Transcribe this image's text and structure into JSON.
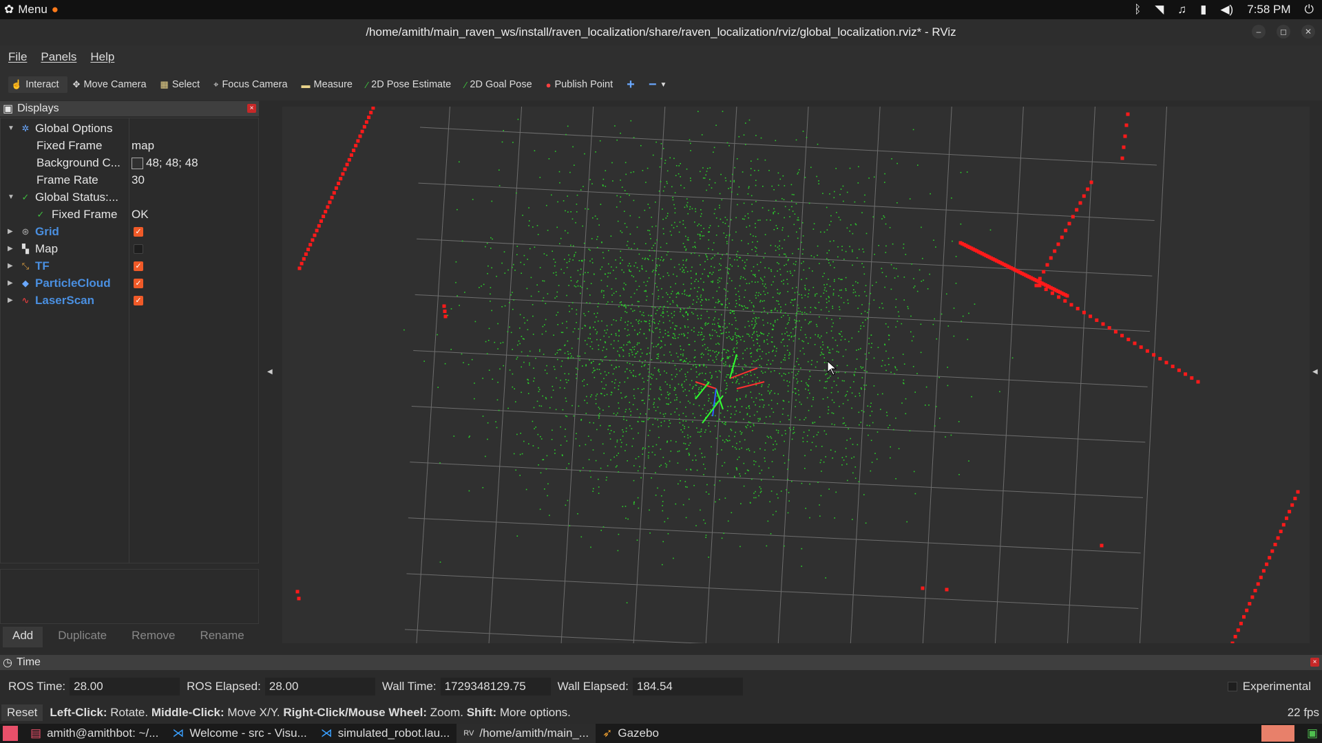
{
  "topbar": {
    "menu_label": "Menu",
    "time": "7:58 PM"
  },
  "window": {
    "title": "/home/amith/main_raven_ws/install/raven_localization/share/raven_localization/rviz/global_localization.rviz* - RViz"
  },
  "menubar": {
    "file": "File",
    "panels": "Panels",
    "help": "Help"
  },
  "toolbar": {
    "interact": "Interact",
    "move_camera": "Move Camera",
    "select": "Select",
    "focus_camera": "Focus Camera",
    "measure": "Measure",
    "pose_estimate": "2D Pose Estimate",
    "goal_pose": "2D Goal Pose",
    "publish_point": "Publish Point",
    "add": "+",
    "remove": "−"
  },
  "displays": {
    "title": "Displays",
    "global_options": "Global Options",
    "fixed_frame_label": "Fixed Frame",
    "fixed_frame_value": "map",
    "background_label": "Background C...",
    "background_value": "48; 48; 48",
    "frame_rate_label": "Frame Rate",
    "frame_rate_value": "30",
    "global_status": "Global Status:...",
    "status_fixed_frame_label": "Fixed Frame",
    "status_fixed_frame_value": "OK",
    "grid": "Grid",
    "map": "Map",
    "tf": "TF",
    "particle_cloud": "ParticleCloud",
    "laser_scan": "LaserScan",
    "btn_add": "Add",
    "btn_duplicate": "Duplicate",
    "btn_remove": "Remove",
    "btn_rename": "Rename",
    "colors": {
      "checkbox_on": "#f05a28",
      "blue_label": "#4a8fe0"
    }
  },
  "time_panel": {
    "title": "Time",
    "ros_time_label": "ROS Time:",
    "ros_time": "28.00",
    "ros_elapsed_label": "ROS Elapsed:",
    "ros_elapsed": "28.00",
    "wall_time_label": "Wall Time:",
    "wall_time": "1729348129.75",
    "wall_elapsed_label": "Wall Elapsed:",
    "wall_elapsed": "184.54",
    "experimental": "Experimental"
  },
  "statusbar": {
    "reset": "Reset",
    "left_click": "Left-Click:",
    "left_click_desc": "Rotate.",
    "middle_click": "Middle-Click:",
    "middle_click_desc": "Move X/Y.",
    "right_click": "Right-Click/Mouse Wheel:",
    "right_click_desc": "Zoom.",
    "shift": "Shift:",
    "shift_desc": "More options.",
    "fps": "22 fps"
  },
  "taskbar": {
    "terminal": "amith@amithbot: ~/...",
    "vscode1": "Welcome - src - Visu...",
    "vscode2": "simulated_robot.lau...",
    "rviz": "/home/amith/main_...",
    "gazebo": "Gazebo"
  },
  "viewport_colors": {
    "background": "#303030",
    "grid": "#a0a0a0",
    "particles": "#2bd12b",
    "laser": "#ff1a1a"
  }
}
